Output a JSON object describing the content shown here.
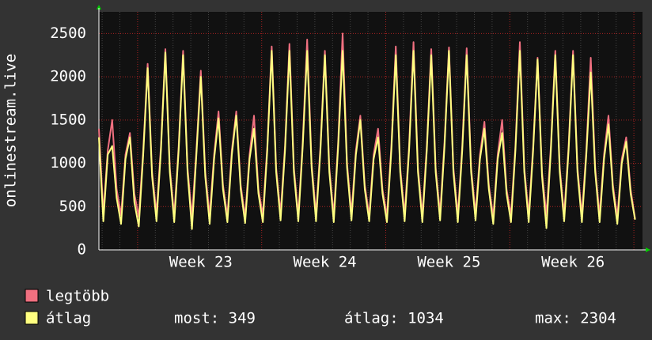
{
  "chart_data": {
    "type": "line",
    "ylabel": "onlinestream.live",
    "categories": [
      null,
      null,
      null,
      null,
      null,
      null,
      null,
      null,
      null,
      null,
      null,
      null,
      null,
      null,
      null,
      null,
      null,
      null,
      null,
      null,
      null,
      null,
      null,
      "Week 23",
      null,
      null,
      null,
      null,
      null,
      null,
      null,
      null,
      null,
      null,
      null,
      null,
      null,
      null,
      null,
      null,
      null,
      null,
      null,
      null,
      null,
      null,
      null,
      null,
      null,
      null,
      null,
      "Week 24",
      null,
      null,
      null,
      null,
      null,
      null,
      null,
      null,
      null,
      null,
      null,
      null,
      null,
      null,
      null,
      null,
      null,
      null,
      null,
      null,
      null,
      null,
      null,
      null,
      null,
      null,
      null,
      "Week 25",
      null,
      null,
      null,
      null,
      null,
      null,
      null,
      null,
      null,
      null,
      null,
      null,
      null,
      null,
      null,
      null,
      null,
      null,
      null,
      null,
      null,
      null,
      null,
      null,
      null,
      null,
      null,
      "Week 26",
      null,
      null,
      null,
      null,
      null,
      null,
      null,
      null,
      null,
      null,
      null,
      null,
      null,
      null
    ],
    "series": [
      {
        "name": "legtöbb",
        "color": "#f07080",
        "values": [
          1400,
          420,
          1150,
          1500,
          700,
          400,
          1100,
          1350,
          650,
          380,
          1150,
          2150,
          900,
          420,
          1200,
          2320,
          950,
          400,
          1200,
          2300,
          950,
          380,
          1150,
          2070,
          900,
          400,
          1100,
          1600,
          750,
          390,
          1150,
          1600,
          750,
          380,
          1100,
          1550,
          700,
          400,
          1200,
          2350,
          950,
          420,
          1200,
          2380,
          950,
          400,
          1250,
          2430,
          1000,
          410,
          1200,
          2300,
          950,
          400,
          1250,
          2500,
          1000,
          420,
          1150,
          1550,
          750,
          400,
          1100,
          1400,
          700,
          390,
          1200,
          2350,
          950,
          410,
          1200,
          2400,
          950,
          400,
          1200,
          2320,
          950,
          420,
          1250,
          2340,
          950,
          400,
          1200,
          2330,
          950,
          420,
          1100,
          1480,
          750,
          380,
          1100,
          1500,
          700,
          400,
          1200,
          2400,
          950,
          400,
          1200,
          2220,
          900,
          400,
          1200,
          2300,
          950,
          410,
          1200,
          2300,
          950,
          400,
          1150,
          2220,
          950,
          400,
          1100,
          1550,
          750,
          380,
          1050,
          1300,
          700,
          360
        ]
      },
      {
        "name": "átlag",
        "color": "#ffff80",
        "values": [
          1300,
          330,
          1100,
          1200,
          600,
          300,
          1050,
          1300,
          550,
          270,
          1100,
          2100,
          850,
          330,
          1150,
          2280,
          900,
          320,
          1150,
          2250,
          900,
          240,
          1100,
          2000,
          850,
          300,
          1050,
          1520,
          700,
          320,
          1100,
          1550,
          700,
          310,
          1050,
          1400,
          650,
          320,
          1150,
          2300,
          900,
          340,
          1150,
          2300,
          900,
          330,
          1200,
          2300,
          950,
          330,
          1150,
          2250,
          900,
          320,
          1200,
          2300,
          950,
          340,
          1100,
          1500,
          700,
          330,
          1050,
          1300,
          650,
          320,
          1150,
          2250,
          900,
          330,
          1150,
          2300,
          900,
          320,
          1150,
          2250,
          900,
          340,
          1200,
          2300,
          900,
          320,
          1150,
          2250,
          900,
          340,
          1050,
          1400,
          700,
          300,
          1050,
          1350,
          650,
          320,
          1150,
          2300,
          900,
          320,
          1150,
          2200,
          850,
          250,
          1150,
          2250,
          900,
          330,
          1150,
          2250,
          900,
          320,
          1100,
          2050,
          900,
          320,
          1050,
          1450,
          700,
          300,
          1000,
          1250,
          650,
          349
        ]
      }
    ],
    "stats": [
      "most: 349",
      "átlag: 1034",
      "max: 2304"
    ],
    "ylim": [
      0,
      2750
    ],
    "yticks": [
      0,
      500,
      1000,
      1500,
      2000,
      2500
    ],
    "grid": true
  }
}
